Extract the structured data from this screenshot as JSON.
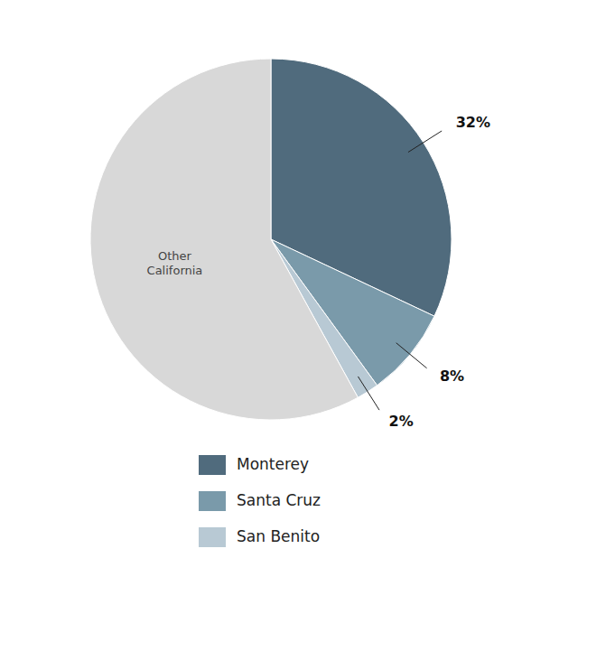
{
  "chart_data": {
    "type": "pie",
    "categories": [
      "Monterey",
      "Santa Cruz",
      "San Benito",
      "Other\nCalifornia"
    ],
    "values": [
      32,
      8,
      2,
      58
    ],
    "colors": [
      "#506b7d",
      "#7a9aaa",
      "#b8c9d4",
      "#d8d8d8"
    ],
    "value_labels": [
      "32%",
      "8%",
      "2%",
      null
    ],
    "legend": "bottom"
  }
}
